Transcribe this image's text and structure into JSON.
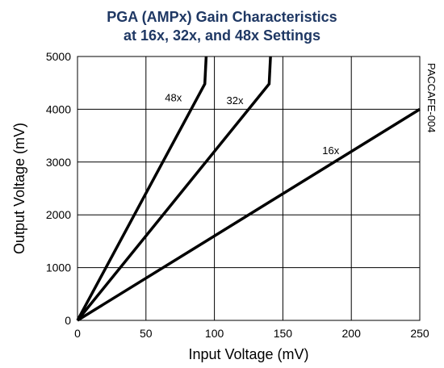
{
  "title_line1": "PGA (AMPx) Gain Characteristics",
  "title_line2": "at 16x, 32x, and 48x Settings",
  "side_label": "PACCAFE-004",
  "colors": {
    "title": "#1f3864",
    "series": "#000000",
    "grid": "#000000"
  },
  "chart_data": {
    "type": "line",
    "title": "PGA (AMPx) Gain Characteristics at 16x, 32x, and 48x Settings",
    "xlabel": "Input Voltage (mV)",
    "ylabel": "Output Voltage (mV)",
    "xlim": [
      0,
      250
    ],
    "ylim": [
      0,
      5000
    ],
    "xticks": [
      0,
      50,
      100,
      150,
      200,
      250
    ],
    "yticks": [
      0,
      1000,
      2000,
      3000,
      4000,
      5000
    ],
    "grid": true,
    "legend": "inline labels",
    "series": [
      {
        "name": "48x",
        "x": [
          0,
          93,
          94
        ],
        "y": [
          0,
          4480,
          5000
        ]
      },
      {
        "name": "32x",
        "x": [
          0,
          140,
          141
        ],
        "y": [
          0,
          4480,
          5000
        ]
      },
      {
        "name": "16x",
        "x": [
          0,
          250
        ],
        "y": [
          0,
          4000
        ]
      }
    ]
  }
}
